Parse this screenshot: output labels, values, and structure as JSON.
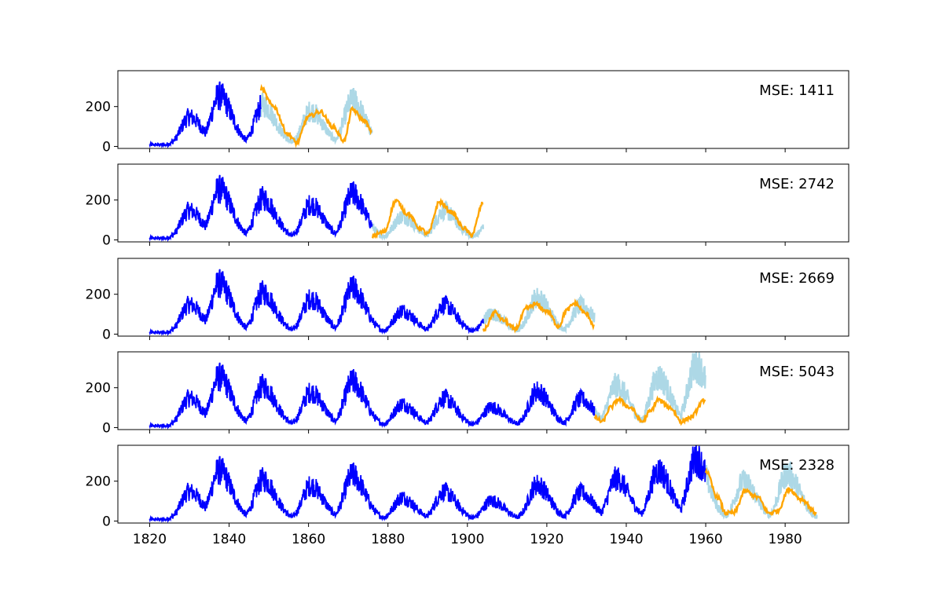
{
  "chart_data": {
    "type": "line",
    "shared_x_axis": true,
    "xlim": [
      1812,
      1996
    ],
    "ylim": [
      -10,
      380
    ],
    "x_ticks": [
      1820,
      1840,
      1860,
      1880,
      1900,
      1920,
      1940,
      1960,
      1980
    ],
    "y_ticks": [
      0,
      200
    ],
    "grid": false,
    "colors": {
      "history": "#0000ff",
      "actual": "#add8e6",
      "forecast": "#ffa500"
    },
    "cycles": [
      {
        "peak_year": 1830.0,
        "peak": 140
      },
      {
        "peak_year": 1837.5,
        "peak": 245
      },
      {
        "peak_year": 1848.5,
        "peak": 200
      },
      {
        "peak_year": 1860.5,
        "peak": 170
      },
      {
        "peak_year": 1871.0,
        "peak": 220
      },
      {
        "peak_year": 1883.5,
        "peak": 110
      },
      {
        "peak_year": 1894.0,
        "peak": 140
      },
      {
        "peak_year": 1906.0,
        "peak": 95
      },
      {
        "peak_year": 1917.5,
        "peak": 175
      },
      {
        "peak_year": 1928.5,
        "peak": 135
      },
      {
        "peak_year": 1937.5,
        "peak": 205
      },
      {
        "peak_year": 1948.0,
        "peak": 245
      },
      {
        "peak_year": 1957.5,
        "peak": 305
      },
      {
        "peak_year": 1969.5,
        "peak": 190
      },
      {
        "peak_year": 1980.5,
        "peak": 230
      }
    ],
    "history_start": 1820,
    "panels": [
      {
        "mse_text": "MSE: 1411",
        "split": 1848,
        "end": 1876,
        "forecast": [
          [
            1848,
            290
          ],
          [
            1851,
            205
          ],
          [
            1855,
            60
          ],
          [
            1857,
            18
          ],
          [
            1860,
            150
          ],
          [
            1863,
            175
          ],
          [
            1866,
            100
          ],
          [
            1869,
            30
          ],
          [
            1871,
            185
          ],
          [
            1874,
            130
          ],
          [
            1876,
            70
          ]
        ]
      },
      {
        "mse_text": "MSE: 2742",
        "split": 1876,
        "end": 1904,
        "forecast": [
          [
            1876,
            20
          ],
          [
            1879,
            40
          ],
          [
            1882,
            195
          ],
          [
            1885,
            130
          ],
          [
            1888,
            60
          ],
          [
            1890,
            30
          ],
          [
            1893,
            190
          ],
          [
            1896,
            140
          ],
          [
            1899,
            60
          ],
          [
            1901,
            25
          ],
          [
            1904,
            185
          ]
        ]
      },
      {
        "mse_text": "MSE: 2669",
        "split": 1904,
        "end": 1932,
        "forecast": [
          [
            1904,
            20
          ],
          [
            1907,
            110
          ],
          [
            1909,
            70
          ],
          [
            1912,
            25
          ],
          [
            1915,
            130
          ],
          [
            1917,
            150
          ],
          [
            1920,
            115
          ],
          [
            1923,
            40
          ],
          [
            1925,
            120
          ],
          [
            1927,
            155
          ],
          [
            1930,
            100
          ],
          [
            1932,
            40
          ]
        ]
      },
      {
        "mse_text": "MSE: 5043",
        "split": 1932,
        "end": 1960,
        "forecast": [
          [
            1932,
            50
          ],
          [
            1934,
            30
          ],
          [
            1936,
            100
          ],
          [
            1938,
            140
          ],
          [
            1941,
            100
          ],
          [
            1944,
            30
          ],
          [
            1946,
            80
          ],
          [
            1948,
            140
          ],
          [
            1951,
            100
          ],
          [
            1954,
            30
          ],
          [
            1956,
            50
          ],
          [
            1960,
            140
          ]
        ]
      },
      {
        "mse_text": "MSE: 2328",
        "split": 1960,
        "end": 1988,
        "forecast": [
          [
            1960,
            250
          ],
          [
            1963,
            120
          ],
          [
            1965,
            40
          ],
          [
            1967,
            40
          ],
          [
            1970,
            150
          ],
          [
            1973,
            120
          ],
          [
            1976,
            40
          ],
          [
            1978,
            50
          ],
          [
            1981,
            160
          ],
          [
            1984,
            110
          ],
          [
            1988,
            40
          ]
        ]
      }
    ]
  }
}
